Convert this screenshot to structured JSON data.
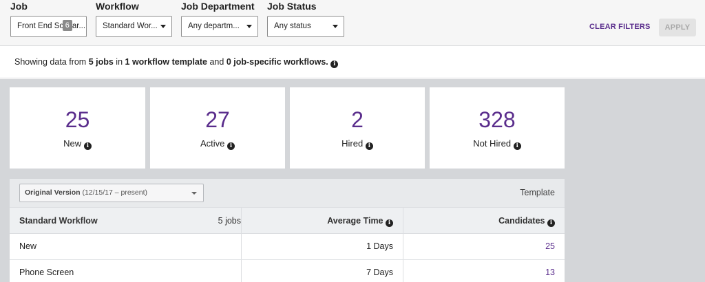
{
  "filters": {
    "job": {
      "label": "Job",
      "value": "Front End So",
      "badge": "6",
      "value_tail": "ar..."
    },
    "workflow": {
      "label": "Workflow",
      "value": "Standard Wor..."
    },
    "department": {
      "label": "Job Department",
      "value": "Any departm..."
    },
    "status": {
      "label": "Job Status",
      "value": "Any status"
    },
    "clear_label": "CLEAR FILTERS",
    "apply_label": "APPLY"
  },
  "summary": {
    "prefix": "Showing data from ",
    "jobs": "5 jobs",
    "middle1": " in ",
    "templates": "1 workflow template",
    "middle2": " and ",
    "specific": "0 job-specific workflows."
  },
  "stats": [
    {
      "value": "25",
      "label": "New"
    },
    {
      "value": "27",
      "label": "Active"
    },
    {
      "value": "2",
      "label": "Hired"
    },
    {
      "value": "328",
      "label": "Not Hired"
    }
  ],
  "version": {
    "name": "Original Version",
    "range": "(12/15/17 – present)",
    "template_label": "Template"
  },
  "table": {
    "headers": {
      "workflow": "Standard Workflow",
      "jobs": "5 jobs",
      "avg_time": "Average Time",
      "candidates": "Candidates"
    },
    "rows": [
      {
        "stage": "New",
        "avg_time": "1 Days",
        "candidates": "25"
      },
      {
        "stage": "Phone Screen",
        "avg_time": "7 Days",
        "candidates": "13"
      }
    ]
  },
  "icons": {
    "info": "info-circle-icon",
    "dropdown": "caret-down-icon"
  },
  "colors": {
    "accent": "#5a2d8c",
    "background": "#d4d6d9",
    "filter_bar": "#f6f6f6"
  }
}
